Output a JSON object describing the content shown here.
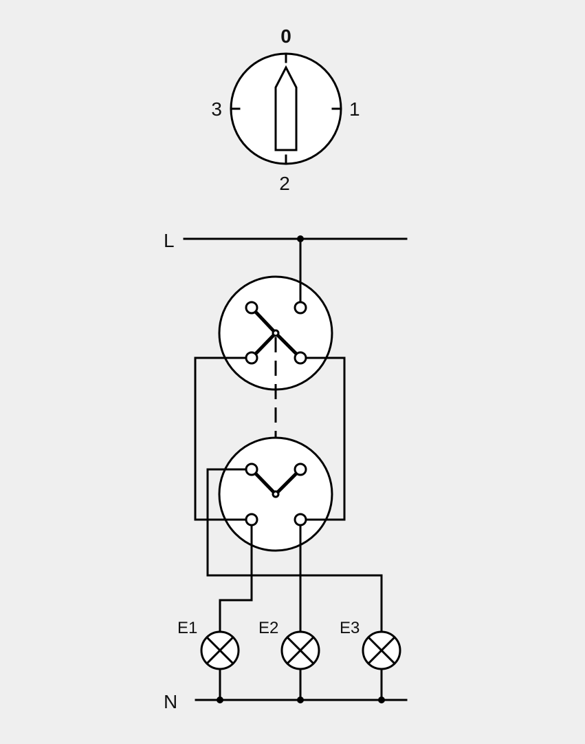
{
  "dial": {
    "pos_top": "0",
    "pos_right": "1",
    "pos_bottom": "2",
    "pos_left": "3"
  },
  "rails": {
    "line": "L",
    "neutral": "N"
  },
  "lamps": [
    {
      "label": "E1"
    },
    {
      "label": "E2"
    },
    {
      "label": "E3"
    }
  ]
}
